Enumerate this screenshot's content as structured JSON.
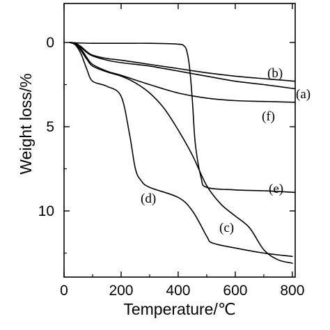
{
  "chart_data": {
    "type": "line",
    "xlabel": "Temperature/℃",
    "ylabel": "Weight loss/%",
    "xlim": [
      0,
      810
    ],
    "ylim": [
      0,
      13.5
    ],
    "y_inverted": true,
    "grid": false,
    "x_ticks": [
      0,
      200,
      400,
      600,
      800
    ],
    "y_ticks": [
      0,
      5,
      10
    ],
    "series": [
      {
        "name": "(a)",
        "x": [
          20,
          40,
          60,
          80,
          100,
          150,
          200,
          300,
          400,
          500,
          600,
          700,
          810
        ],
        "y": [
          0,
          0.05,
          0.3,
          0.6,
          0.8,
          1.05,
          1.2,
          1.4,
          1.7,
          2.0,
          2.3,
          2.5,
          2.75
        ]
      },
      {
        "name": "(b)",
        "x": [
          20,
          40,
          60,
          80,
          100,
          150,
          200,
          300,
          400,
          500,
          600,
          700,
          810
        ],
        "y": [
          0,
          0.05,
          0.25,
          0.55,
          0.75,
          0.95,
          1.05,
          1.3,
          1.55,
          1.8,
          2.0,
          2.15,
          2.3
        ]
      },
      {
        "name": "(c)",
        "x": [
          20,
          40,
          60,
          80,
          100,
          150,
          200,
          250,
          300,
          350,
          400,
          450,
          500,
          550,
          600,
          650,
          700,
          750,
          800
        ],
        "y": [
          0,
          0.1,
          0.5,
          1.0,
          1.4,
          1.75,
          2.0,
          2.4,
          3.0,
          3.9,
          5.2,
          6.7,
          8.5,
          9.6,
          10.3,
          11.0,
          12.3,
          12.9,
          13.1
        ]
      },
      {
        "name": "(d)",
        "x": [
          20,
          40,
          60,
          80,
          100,
          150,
          200,
          230,
          250,
          270,
          300,
          400,
          450,
          500,
          520,
          600,
          700,
          800
        ],
        "y": [
          0,
          0.15,
          0.7,
          1.6,
          2.3,
          2.6,
          3.2,
          5.5,
          7.5,
          8.2,
          8.6,
          9.2,
          10.0,
          11.5,
          11.9,
          12.2,
          12.5,
          12.7
        ]
      },
      {
        "name": "(e)",
        "x": [
          20,
          50,
          100,
          200,
          300,
          400,
          420,
          430,
          440,
          450,
          460,
          480,
          500,
          600,
          700,
          810
        ],
        "y": [
          0,
          0.03,
          0.05,
          0.05,
          0.05,
          0.1,
          0.2,
          0.5,
          1.5,
          3.5,
          6.0,
          8.0,
          8.6,
          8.75,
          8.8,
          8.9
        ]
      },
      {
        "name": "(f)",
        "x": [
          20,
          40,
          60,
          80,
          100,
          150,
          200,
          300,
          400,
          500,
          600,
          700,
          810
        ],
        "y": [
          0,
          0.1,
          0.4,
          0.9,
          1.3,
          1.7,
          1.95,
          2.5,
          3.0,
          3.3,
          3.45,
          3.5,
          3.55
        ]
      }
    ]
  }
}
